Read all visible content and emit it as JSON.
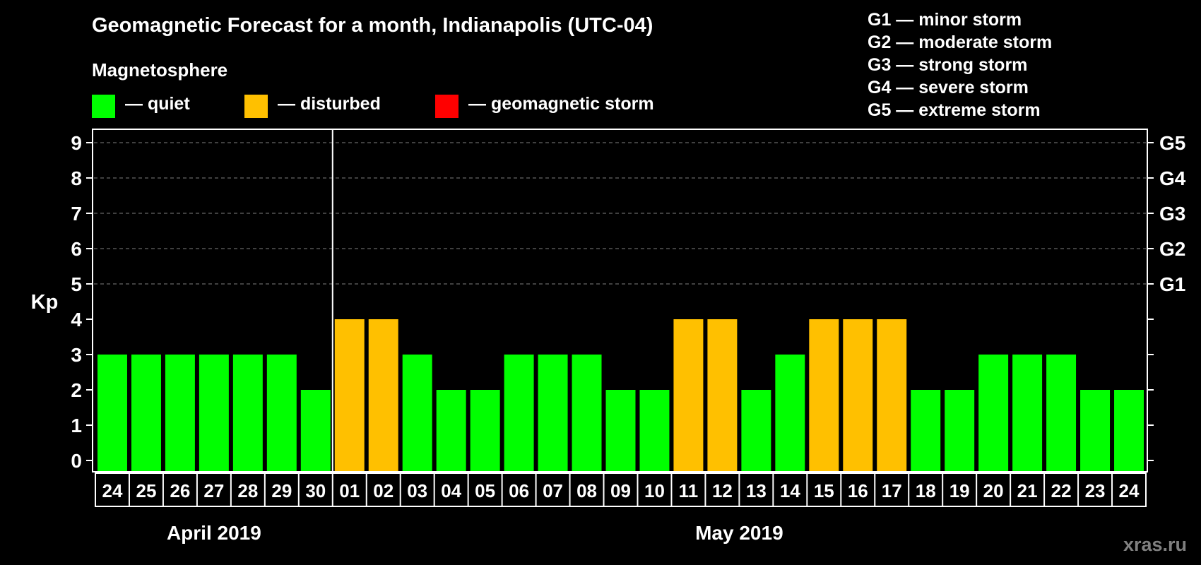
{
  "title": "Geomagnetic Forecast for a month, Indianapolis (UTC-04)",
  "legend": {
    "heading": "Magnetosphere",
    "items": [
      {
        "label": "— quiet",
        "color": "#00ff00"
      },
      {
        "label": "— disturbed",
        "color": "#ffc000"
      },
      {
        "label": "— geomagnetic storm",
        "color": "#ff0000"
      }
    ]
  },
  "storm_scale": [
    "G1 — minor storm",
    "G2 — moderate storm",
    "G3 — strong storm",
    "G4 — severe storm",
    "G5 — extreme storm"
  ],
  "watermark": "xras.ru",
  "chart_data": {
    "type": "bar",
    "title": "Geomagnetic Forecast for a month, Indianapolis (UTC-04)",
    "ylabel": "Kp",
    "ylim": [
      0,
      9
    ],
    "yticks": [
      "0",
      "1",
      "2",
      "3",
      "4",
      "5",
      "6",
      "7",
      "8",
      "9"
    ],
    "right_ticks": [
      {
        "kp": 5,
        "label": "G1"
      },
      {
        "kp": 6,
        "label": "G2"
      },
      {
        "kp": 7,
        "label": "G3"
      },
      {
        "kp": 8,
        "label": "G4"
      },
      {
        "kp": 9,
        "label": "G5"
      }
    ],
    "grid": "dashed at Kp 5-9",
    "months": [
      {
        "label": "April 2019",
        "days": 7
      },
      {
        "label": "May 2019",
        "days": 24
      }
    ],
    "categories": [
      "24",
      "25",
      "26",
      "27",
      "28",
      "29",
      "30",
      "01",
      "02",
      "03",
      "04",
      "05",
      "06",
      "07",
      "08",
      "09",
      "10",
      "11",
      "12",
      "13",
      "14",
      "15",
      "16",
      "17",
      "18",
      "19",
      "20",
      "21",
      "22",
      "23",
      "24"
    ],
    "values": [
      3,
      3,
      3,
      3,
      3,
      3,
      2,
      4,
      4,
      3,
      2,
      2,
      3,
      3,
      3,
      2,
      2,
      4,
      4,
      2,
      3,
      4,
      4,
      4,
      2,
      2,
      3,
      3,
      3,
      2,
      2
    ],
    "colors": {
      "quiet": "#00ff00",
      "disturbed": "#ffc000",
      "storm": "#ff0000"
    }
  }
}
